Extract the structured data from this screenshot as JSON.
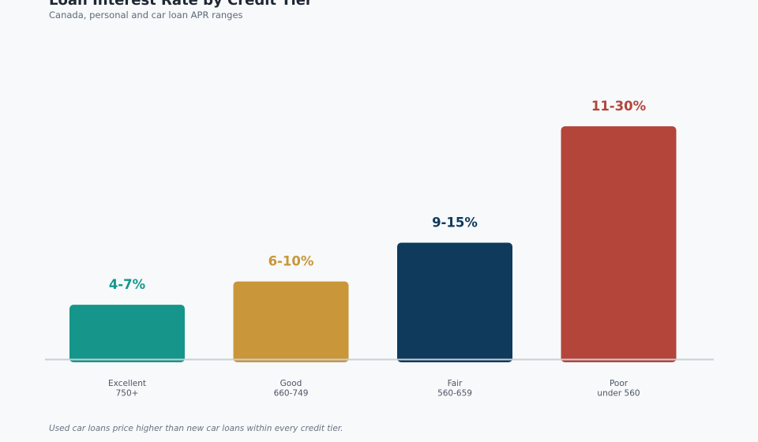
{
  "header": {
    "title": "Loan Interest Rate by Credit Tier",
    "subtitle": "Canada, personal and car loan APR ranges"
  },
  "footer": {
    "note": "Used car loans price higher than new car loans within every credit tier."
  },
  "chart_data": {
    "type": "bar",
    "title": "Loan Interest Rate by Credit Tier",
    "subtitle": "Canada, personal and car loan APR ranges",
    "xlabel": "",
    "ylabel": "",
    "categories": [
      "Excellent 750+",
      "Good 660-749",
      "Fair 560-659",
      "Poor under 560"
    ],
    "category_lines": [
      [
        "Excellent",
        "750+"
      ],
      [
        "Good",
        "660-749"
      ],
      [
        "Fair",
        "560-659"
      ],
      [
        "Poor",
        "under 560"
      ]
    ],
    "values": [
      7,
      10,
      15,
      30
    ],
    "data_labels": [
      "4-7%",
      "6-10%",
      "9-15%",
      "11-30%"
    ],
    "colors": [
      "#16968a",
      "#c9963a",
      "#0f3a5c",
      "#b4453b"
    ],
    "axis_color": "#c9cfd6",
    "ylim": [
      0,
      30
    ],
    "grid": false,
    "legend": "none"
  }
}
